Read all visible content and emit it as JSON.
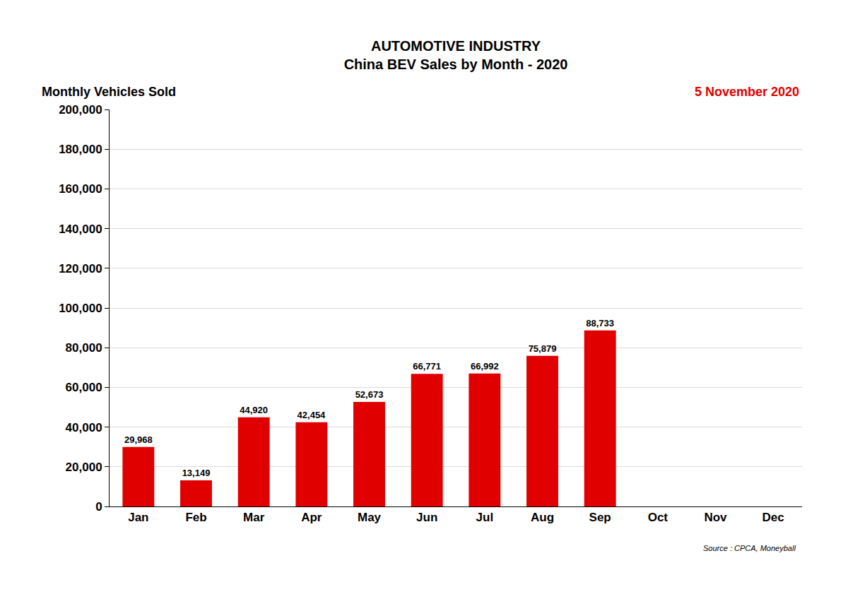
{
  "chart_data": {
    "type": "bar",
    "title": "AUTOMOTIVE INDUSTRY",
    "subtitle": "China BEV Sales by Month - 2020",
    "ylabel": "Monthly Vehicles Sold",
    "annotations": [
      "5 November 2020",
      "Source : CPCA, Moneyball"
    ],
    "categories": [
      "Jan",
      "Feb",
      "Mar",
      "Apr",
      "May",
      "Jun",
      "Jul",
      "Aug",
      "Sep",
      "Oct",
      "Nov",
      "Dec"
    ],
    "values": [
      29968,
      13149,
      44920,
      42454,
      52673,
      66771,
      66992,
      75879,
      88733,
      null,
      null,
      null
    ],
    "value_labels": [
      "29,968",
      "13,149",
      "44,920",
      "42,454",
      "52,673",
      "66,771",
      "66,992",
      "75,879",
      "88,733",
      null,
      null,
      null
    ],
    "data_labels": true,
    "color": "#e00000",
    "ylim": [
      0,
      200000
    ],
    "yticks": [
      0,
      {
        "value": 20000,
        "label": "20,000"
      },
      {
        "value": 40000,
        "label": "40,000"
      },
      {
        "value": 60000,
        "label": "60,000"
      },
      {
        "value": 80000,
        "label": "80,000"
      },
      {
        "value": 100000,
        "label": "100,000"
      },
      {
        "value": 120000,
        "label": "120,000"
      },
      {
        "value": 140000,
        "label": "140,000"
      },
      {
        "value": 160000,
        "label": "160,000"
      },
      {
        "value": 180000,
        "label": "180,000"
      },
      {
        "value": 200000,
        "label": "200,000"
      }
    ],
    "grid": true
  }
}
